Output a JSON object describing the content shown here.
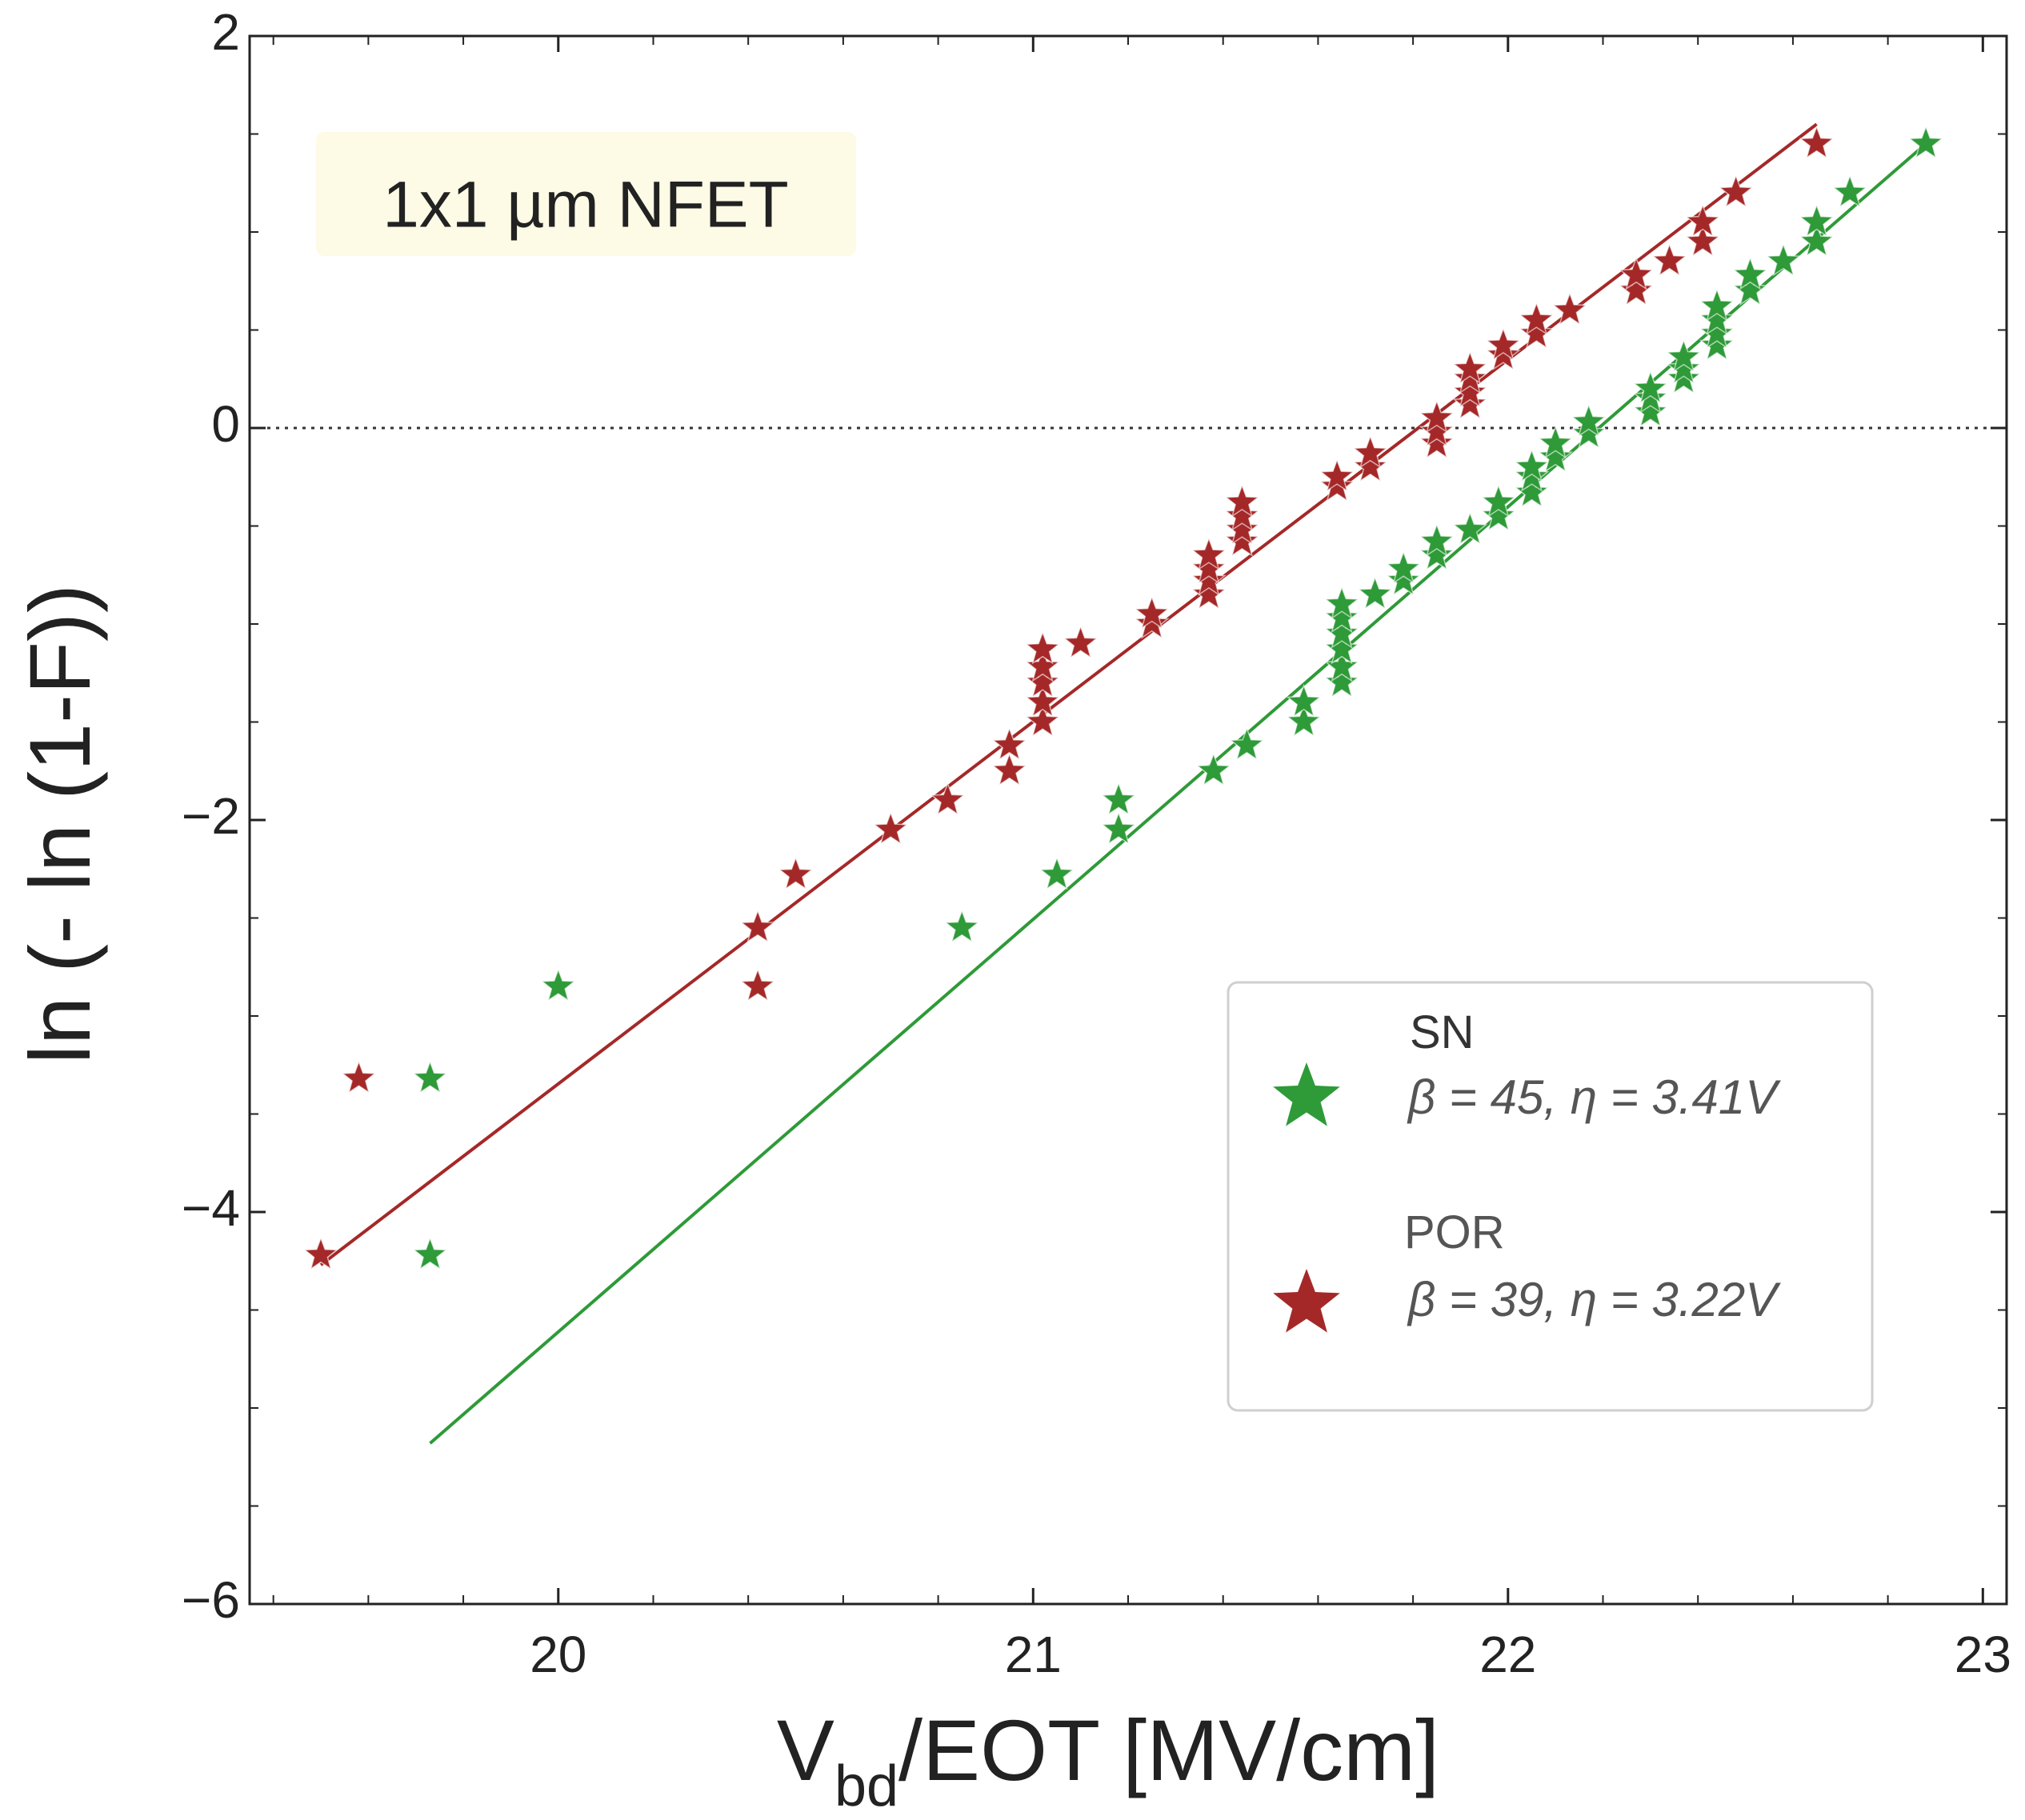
{
  "chart_data": {
    "type": "scatter",
    "title": "",
    "annotation": "1x1 µm NFET",
    "xlabel_main": "V",
    "xlabel_sub": "bd",
    "xlabel_rest": "/EOT [MV/cm]",
    "ylabel": "ln (- ln (1-F))",
    "xlim": [
      19.35,
      23.05
    ],
    "ylim": [
      -6,
      2
    ],
    "x_ticks": [
      20,
      21,
      22,
      23
    ],
    "x_tick_labels": [
      "20",
      "21",
      "22",
      "23"
    ],
    "y_ticks": [
      -6,
      -4,
      -2,
      0,
      2
    ],
    "y_tick_labels": [
      "−6",
      "−4",
      "−2",
      "0",
      "2"
    ],
    "reference_line_y": 0,
    "grid": false,
    "legend_position": "bottom-right",
    "colors": {
      "SN": "#2e9a38",
      "POR": "#a52828",
      "axis": "#222222",
      "annotation_bg": "#fdfbe6"
    },
    "series": [
      {
        "name": "SN",
        "legend_name": "SN",
        "legend_params": "β = 45, η = 3.41V",
        "color": "#2e9a38",
        "fit_line": {
          "x": [
            19.73,
            22.88
          ],
          "y": [
            -5.18,
            1.45
          ]
        },
        "points": [
          [
            19.73,
            -3.32
          ],
          [
            19.73,
            -4.22
          ],
          [
            20.0,
            -2.85
          ],
          [
            20.85,
            -2.55
          ],
          [
            21.05,
            -2.28
          ],
          [
            21.18,
            -2.05
          ],
          [
            21.18,
            -1.9
          ],
          [
            21.38,
            -1.75
          ],
          [
            21.45,
            -1.62
          ],
          [
            21.57,
            -1.5
          ],
          [
            21.57,
            -1.4
          ],
          [
            21.65,
            -1.3
          ],
          [
            21.65,
            -1.22
          ],
          [
            21.65,
            -1.13
          ],
          [
            21.65,
            -1.05
          ],
          [
            21.65,
            -0.97
          ],
          [
            21.65,
            -0.9
          ],
          [
            21.72,
            -0.85
          ],
          [
            21.78,
            -0.78
          ],
          [
            21.78,
            -0.72
          ],
          [
            21.85,
            -0.65
          ],
          [
            21.85,
            -0.58
          ],
          [
            21.92,
            -0.52
          ],
          [
            21.98,
            -0.45
          ],
          [
            21.98,
            -0.38
          ],
          [
            22.05,
            -0.33
          ],
          [
            22.05,
            -0.25
          ],
          [
            22.05,
            -0.2
          ],
          [
            22.1,
            -0.15
          ],
          [
            22.1,
            -0.08
          ],
          [
            22.17,
            -0.03
          ],
          [
            22.17,
            0.03
          ],
          [
            22.3,
            0.08
          ],
          [
            22.3,
            0.15
          ],
          [
            22.3,
            0.2
          ],
          [
            22.37,
            0.25
          ],
          [
            22.37,
            0.3
          ],
          [
            22.37,
            0.36
          ],
          [
            22.44,
            0.42
          ],
          [
            22.44,
            0.48
          ],
          [
            22.44,
            0.55
          ],
          [
            22.44,
            0.62
          ],
          [
            22.51,
            0.7
          ],
          [
            22.51,
            0.78
          ],
          [
            22.58,
            0.85
          ],
          [
            22.65,
            0.95
          ],
          [
            22.65,
            1.05
          ],
          [
            22.72,
            1.2
          ],
          [
            22.88,
            1.45
          ]
        ]
      },
      {
        "name": "POR",
        "legend_name": "POR",
        "legend_params": "β = 39, η = 3.22V",
        "color": "#a52828",
        "fit_line": {
          "x": [
            19.5,
            22.65
          ],
          "y": [
            -4.27,
            1.55
          ]
        },
        "points": [
          [
            19.5,
            -4.22
          ],
          [
            19.58,
            -3.32
          ],
          [
            20.42,
            -2.85
          ],
          [
            20.42,
            -2.55
          ],
          [
            20.5,
            -2.28
          ],
          [
            20.7,
            -2.05
          ],
          [
            20.82,
            -1.9
          ],
          [
            20.95,
            -1.75
          ],
          [
            20.95,
            -1.62
          ],
          [
            21.02,
            -1.5
          ],
          [
            21.02,
            -1.4
          ],
          [
            21.02,
            -1.3
          ],
          [
            21.02,
            -1.22
          ],
          [
            21.02,
            -1.13
          ],
          [
            21.1,
            -1.1
          ],
          [
            21.25,
            -1.0
          ],
          [
            21.25,
            -0.95
          ],
          [
            21.37,
            -0.85
          ],
          [
            21.37,
            -0.78
          ],
          [
            21.37,
            -0.72
          ],
          [
            21.37,
            -0.65
          ],
          [
            21.44,
            -0.58
          ],
          [
            21.44,
            -0.52
          ],
          [
            21.44,
            -0.45
          ],
          [
            21.44,
            -0.38
          ],
          [
            21.64,
            -0.3
          ],
          [
            21.64,
            -0.25
          ],
          [
            21.71,
            -0.2
          ],
          [
            21.71,
            -0.13
          ],
          [
            21.85,
            -0.08
          ],
          [
            21.85,
            -0.02
          ],
          [
            21.85,
            0.05
          ],
          [
            21.92,
            0.12
          ],
          [
            21.92,
            0.18
          ],
          [
            21.92,
            0.25
          ],
          [
            21.92,
            0.3
          ],
          [
            21.99,
            0.37
          ],
          [
            21.99,
            0.42
          ],
          [
            22.06,
            0.48
          ],
          [
            22.06,
            0.55
          ],
          [
            22.13,
            0.6
          ],
          [
            22.27,
            0.7
          ],
          [
            22.27,
            0.78
          ],
          [
            22.34,
            0.85
          ],
          [
            22.41,
            0.95
          ],
          [
            22.41,
            1.05
          ],
          [
            22.48,
            1.2
          ],
          [
            22.65,
            1.45
          ]
        ]
      }
    ]
  }
}
